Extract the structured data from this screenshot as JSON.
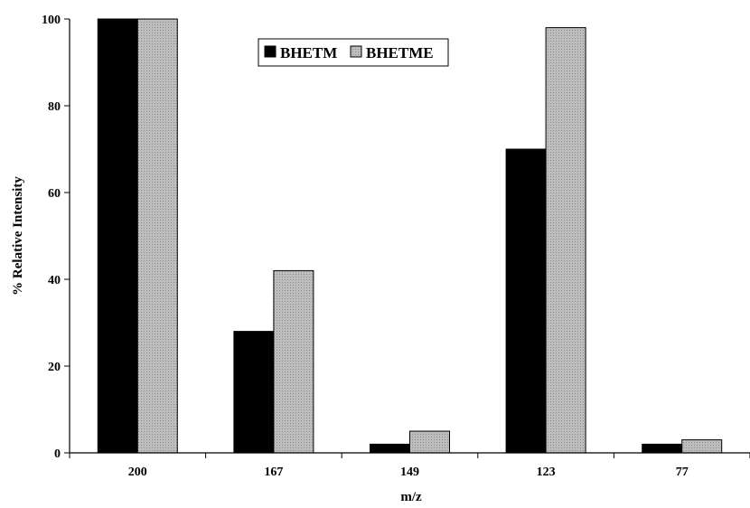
{
  "chart_data": {
    "type": "bar",
    "categories": [
      "200",
      "167",
      "149",
      "123",
      "77"
    ],
    "series": [
      {
        "name": "BHETM",
        "values": [
          100,
          28,
          2,
          70,
          2
        ],
        "color": "#000000"
      },
      {
        "name": "BHETME",
        "values": [
          100,
          42,
          5,
          98,
          3
        ],
        "color": "#b0b0b0"
      }
    ],
    "xlabel": "m/z",
    "ylabel": "% Relative Intensity",
    "ylim": [
      0,
      100
    ],
    "yticks": [
      0,
      20,
      40,
      60,
      80,
      100
    ],
    "grid": false,
    "legend": "top-center"
  }
}
